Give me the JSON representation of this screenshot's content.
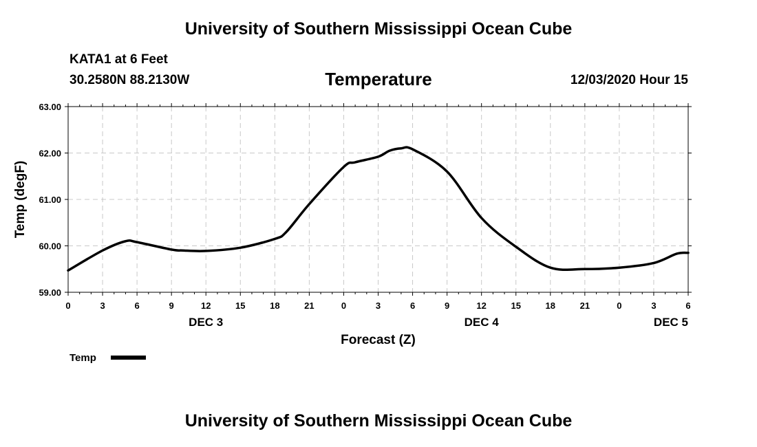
{
  "header": {
    "org_title": "University of Southern Mississippi Ocean Cube",
    "station_name": "KATA1 at 6 Feet",
    "station_coords": "30.2580N 88.2130W",
    "date_label": "12/03/2020 Hour 15"
  },
  "footer": {
    "org_title": "University of Southern Mississippi Ocean Cube"
  },
  "colors": {
    "line": "#000000",
    "grid": "#c8c8c8"
  },
  "chart_data": {
    "type": "line",
    "title": "Temperature",
    "ylabel": "Temp (degF)",
    "xlabel": "Forecast (Z)",
    "ylim": [
      59.0,
      63.0
    ],
    "xlim": [
      0,
      54
    ],
    "yticks": [
      "59.00",
      "60.00",
      "61.00",
      "62.00",
      "63.00"
    ],
    "ytick_values": [
      59,
      60,
      61,
      62,
      63
    ],
    "xticks": [
      "0",
      "3",
      "6",
      "9",
      "12",
      "15",
      "18",
      "21",
      "0",
      "3",
      "6",
      "9",
      "12",
      "15",
      "18",
      "21",
      "0",
      "3",
      "6"
    ],
    "day_labels": [
      {
        "label": "DEC 3",
        "hour": 12
      },
      {
        "label": "DEC 4",
        "hour": 36
      },
      {
        "label": "DEC 5",
        "hour": 52.5
      }
    ],
    "grid": true,
    "legend": {
      "entries": [
        "Temp"
      ],
      "placement": "bottom-left"
    },
    "series": [
      {
        "name": "Temp",
        "x": [
          0,
          3,
          5,
          6,
          9,
          10,
          12,
          15,
          18,
          19,
          21,
          24,
          25,
          27,
          28,
          29,
          30,
          33,
          36,
          39,
          42,
          45,
          48,
          51,
          53,
          54
        ],
        "values": [
          59.47,
          59.9,
          60.1,
          60.08,
          59.92,
          59.9,
          59.89,
          59.96,
          60.15,
          60.3,
          60.9,
          61.7,
          61.8,
          61.92,
          62.05,
          62.1,
          62.08,
          61.6,
          60.6,
          59.98,
          59.53,
          59.5,
          59.53,
          59.63,
          59.83,
          59.85
        ]
      }
    ]
  }
}
